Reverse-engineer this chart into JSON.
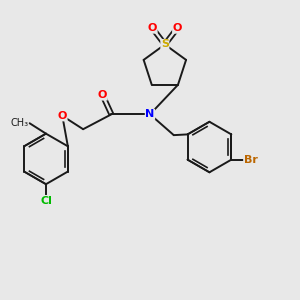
{
  "bg_color": "#e8e8e8",
  "bond_color": "#1a1a1a",
  "atom_colors": {
    "O": "#ff0000",
    "N": "#0000ff",
    "S": "#ccaa00",
    "Cl": "#00bb00",
    "Br": "#bb6600",
    "C": "#1a1a1a"
  },
  "font_size": 8,
  "figsize": [
    3.0,
    3.0
  ],
  "dpi": 100
}
